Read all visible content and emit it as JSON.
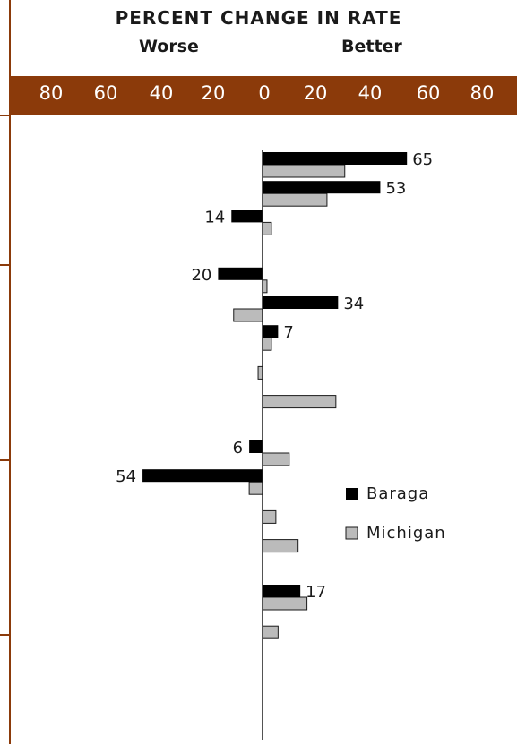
{
  "chart_data": {
    "type": "bar",
    "orientation": "horizontal",
    "title": "PERCENT CHANGE IN RATE",
    "left_label": "Worse",
    "right_label": "Better",
    "xlim": [
      -80,
      80
    ],
    "tick_labels": [
      "80",
      "60",
      "40",
      "20",
      "0",
      "20",
      "40",
      "60",
      "80"
    ],
    "grid": false,
    "legend_position": "right-center",
    "colors": {
      "Baraga": "#000000",
      "Michigan": "#bbbbbb",
      "band": "#8B3A0A"
    },
    "series": [
      {
        "name": "Baraga",
        "values": [
          65,
          53,
          -14,
          null,
          -20,
          34,
          7,
          null,
          null,
          null,
          -6,
          -54,
          null,
          null,
          null,
          17,
          null
        ],
        "labels": [
          "65",
          "53",
          "14",
          "",
          "20",
          "34",
          "7",
          "",
          "",
          "",
          "6",
          "54",
          "",
          "",
          "",
          "17",
          ""
        ]
      },
      {
        "name": "Michigan",
        "values": [
          37,
          29,
          4,
          null,
          2,
          -13,
          4,
          -2,
          33,
          null,
          12,
          -6,
          6,
          16,
          null,
          20,
          7
        ]
      }
    ]
  }
}
